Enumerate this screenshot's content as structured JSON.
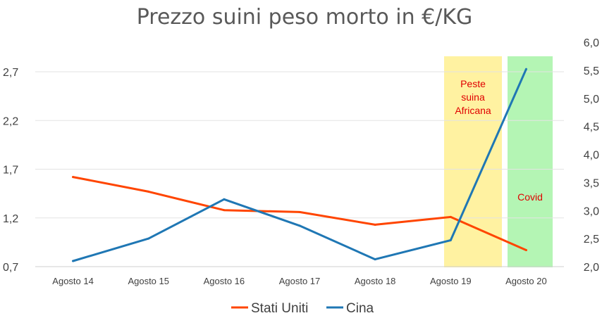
{
  "chart_data": {
    "type": "line",
    "title": "Prezzo suini peso morto in €/KG",
    "categories": [
      "Agosto 14",
      "Agosto 15",
      "Agosto 16",
      "Agosto 17",
      "Agosto 18",
      "Agosto 19",
      "Agosto 20"
    ],
    "y_left": {
      "ticks": [
        "0,7",
        "1,2",
        "1,7",
        "2,2",
        "2,7"
      ],
      "min": 0.7,
      "max": 2.7
    },
    "y_right": {
      "ticks": [
        "2,0",
        "2,5",
        "3,0",
        "3,5",
        "4,0",
        "4,5",
        "5,0",
        "5,5",
        "6,0"
      ],
      "min": 2.0,
      "max": 6.0
    },
    "series": [
      {
        "name": "Stati Uniti",
        "color": "#ff4500",
        "axis": "left",
        "values": [
          1.62,
          1.47,
          1.28,
          1.26,
          1.13,
          1.21,
          0.87
        ]
      },
      {
        "name": "Cina",
        "color": "#1f77b4",
        "axis": "right",
        "values": [
          2.1,
          2.5,
          3.2,
          2.73,
          2.13,
          2.47,
          5.52
        ]
      }
    ],
    "highlights": [
      {
        "label": "Peste\nsuina\nAfricana",
        "color": "#fff2a1",
        "from_category": "Agosto 19"
      },
      {
        "label": "Covid",
        "color": "#b4f5b4",
        "from_category": "Agosto 20"
      }
    ],
    "gridlines": true,
    "legend_position": "bottom"
  }
}
